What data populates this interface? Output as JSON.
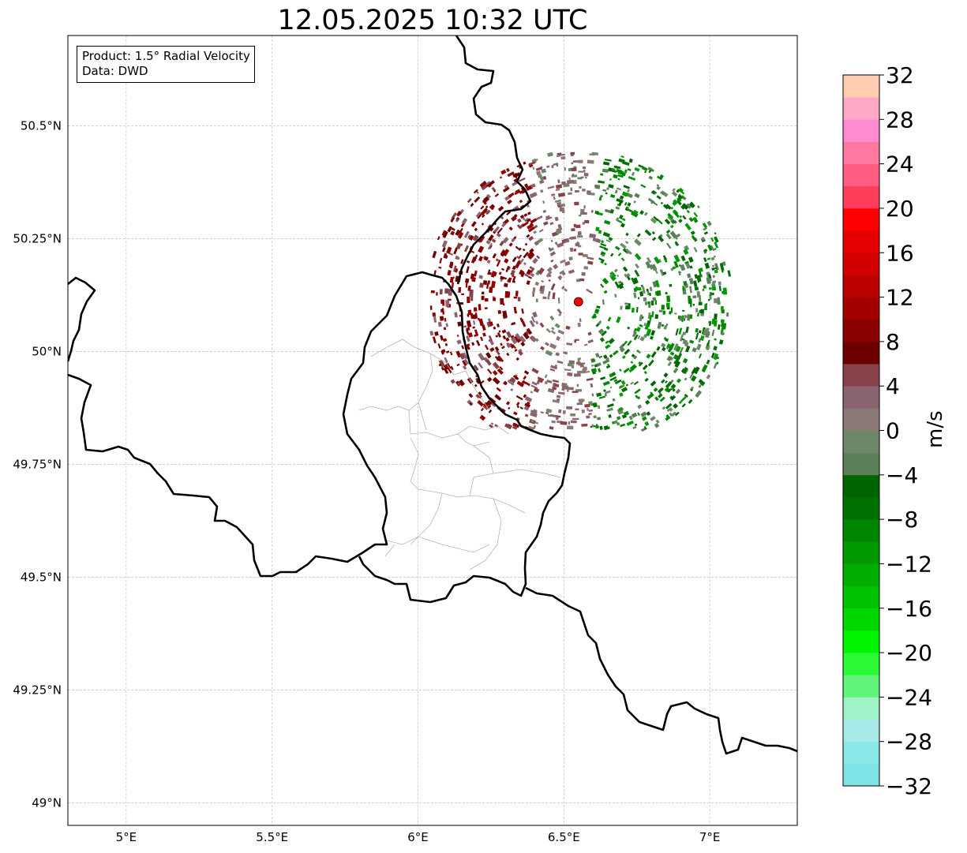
{
  "title": "12.05.2025 10:32 UTC",
  "info_box": {
    "product": "Product: 1.5° Radial Velocity",
    "data": "Data: DWD"
  },
  "map": {
    "lon_range": [
      4.8,
      7.3
    ],
    "lat_range": [
      48.95,
      50.7
    ],
    "lon_ticks": [
      {
        "value": 5.0,
        "label": "5°E"
      },
      {
        "value": 5.5,
        "label": "5.5°E"
      },
      {
        "value": 6.0,
        "label": "6°E"
      },
      {
        "value": 6.5,
        "label": "6.5°E"
      },
      {
        "value": 7.0,
        "label": "7°E"
      }
    ],
    "lat_ticks": [
      {
        "value": 49.0,
        "label": "49°N"
      },
      {
        "value": 49.25,
        "label": "49.25°N"
      },
      {
        "value": 49.5,
        "label": "49.5°N"
      },
      {
        "value": 49.75,
        "label": "49.75°N"
      },
      {
        "value": 50.0,
        "label": "50°N"
      },
      {
        "value": 50.25,
        "label": "50.25°N"
      },
      {
        "value": 50.5,
        "label": "50.5°N"
      }
    ],
    "radar_site": {
      "lon": 6.55,
      "lat": 50.11,
      "color": "#ff0000"
    },
    "border_color": "#000000",
    "grid": true
  },
  "colorbar": {
    "label": "m/s",
    "min": -32,
    "max": 32,
    "step": 2,
    "tick_labels": [
      "32",
      "28",
      "24",
      "20",
      "16",
      "12",
      "8",
      "4",
      "0",
      "−4",
      "−8",
      "−12",
      "−16",
      "−20",
      "−24",
      "−28",
      "−32"
    ],
    "colors": [
      "#7fe2e6",
      "#8be8e8",
      "#a8eae8",
      "#a0f2c8",
      "#60f57a",
      "#2dfa36",
      "#00f500",
      "#00d800",
      "#00c200",
      "#00ae00",
      "#009a00",
      "#008600",
      "#007000",
      "#006400",
      "#5b8059",
      "#6d8769",
      "#8b7a77",
      "#8a6470",
      "#874349",
      "#6d0000",
      "#8b0000",
      "#a30000",
      "#bb0000",
      "#d20000",
      "#e60000",
      "#ff0000",
      "#ff3e5a",
      "#ff5e82",
      "#ff78a0",
      "#ff8ad0",
      "#ffa8c8",
      "#ffceb0"
    ]
  }
}
